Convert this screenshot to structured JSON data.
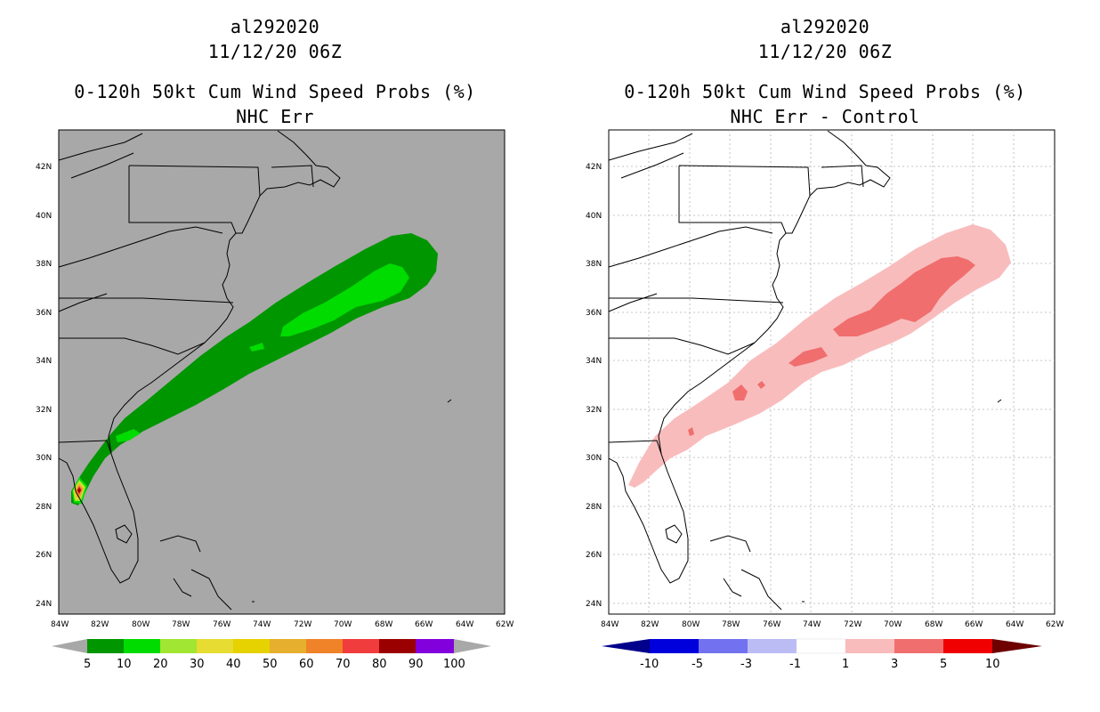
{
  "panels": [
    {
      "id": "left",
      "storm_id": "al292020",
      "datetime": "11/12/20 06Z",
      "product": "0-120h 50kt Cum Wind Speed Probs (%)",
      "subtitle": "NHC Err",
      "background": "#a8a8a8",
      "gridlines": false,
      "colorbar": {
        "labels": [
          "5",
          "10",
          "20",
          "30",
          "40",
          "50",
          "60",
          "70",
          "80",
          "90",
          "100"
        ],
        "colors": [
          "#009600",
          "#00dc00",
          "#a0e632",
          "#e6dc32",
          "#e6d200",
          "#e6af2d",
          "#f08228",
          "#f03c3c",
          "#9b0000",
          "#8200dc"
        ],
        "end_arrow_color": "#a8a8a8"
      }
    },
    {
      "id": "right",
      "storm_id": "al292020",
      "datetime": "11/12/20 06Z",
      "product": "0-120h 50kt Cum Wind Speed Probs (%)",
      "subtitle": "NHC Err - Control",
      "background": "#ffffff",
      "gridlines": true,
      "colorbar": {
        "labels": [
          "-10",
          "-5",
          "-3",
          "-1",
          "1",
          "3",
          "5",
          "10"
        ],
        "colors": [
          "#0000dc",
          "#7272f0",
          "#bcbcf5",
          "#ffffff",
          "#f9bcbc",
          "#f06e6e",
          "#f00000"
        ],
        "left_arrow_color": "#00008b",
        "right_arrow_color": "#6e0000"
      }
    }
  ],
  "axes": {
    "lat_labels": [
      "42N",
      "40N",
      "38N",
      "36N",
      "34N",
      "32N",
      "30N",
      "28N",
      "26N",
      "24N"
    ],
    "lon_labels": [
      "84W",
      "82W",
      "80W",
      "78W",
      "76W",
      "74W",
      "72W",
      "70W",
      "68W",
      "66W",
      "64W",
      "62W"
    ],
    "lat_values": [
      42,
      40,
      38,
      36,
      34,
      32,
      30,
      28,
      26,
      24
    ],
    "lon_values": [
      84,
      82,
      80,
      78,
      76,
      74,
      72,
      70,
      68,
      66,
      64,
      62
    ],
    "lat_range": [
      23.6,
      43.6
    ],
    "lon_range": [
      84,
      62
    ]
  }
}
